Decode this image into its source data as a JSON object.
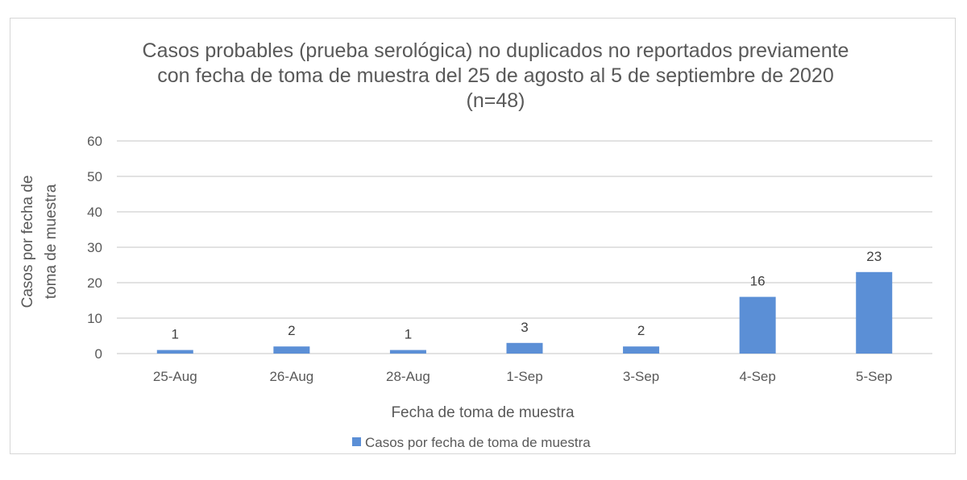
{
  "chart_data": {
    "type": "bar",
    "title_lines": [
      "Casos probables (prueba serológica) no duplicados no reportados previamente",
      "con fecha de toma de muestra del 25 de agosto al 5 de septiembre de 2020",
      "(n=48)"
    ],
    "categories": [
      "25-Aug",
      "26-Aug",
      "28-Aug",
      "1-Sep",
      "3-Sep",
      "4-Sep",
      "5-Sep"
    ],
    "series": [
      {
        "name": "Casos por fecha de toma de muestra",
        "values": [
          1,
          2,
          1,
          3,
          2,
          16,
          23
        ],
        "color": "#5b8fd6"
      }
    ],
    "ylim": [
      0,
      60
    ],
    "yticks": [
      0,
      10,
      20,
      30,
      40,
      50,
      60
    ],
    "xlabel": "Fecha de toma de muestra",
    "ylabel_lines": [
      "Casos por fecha de",
      "toma de muestra"
    ],
    "grid": true,
    "legend_position": "bottom",
    "data_labels": true
  },
  "colors": {
    "bar": "#5b8fd6",
    "grid": "#d9d9d9",
    "text": "#595959"
  }
}
